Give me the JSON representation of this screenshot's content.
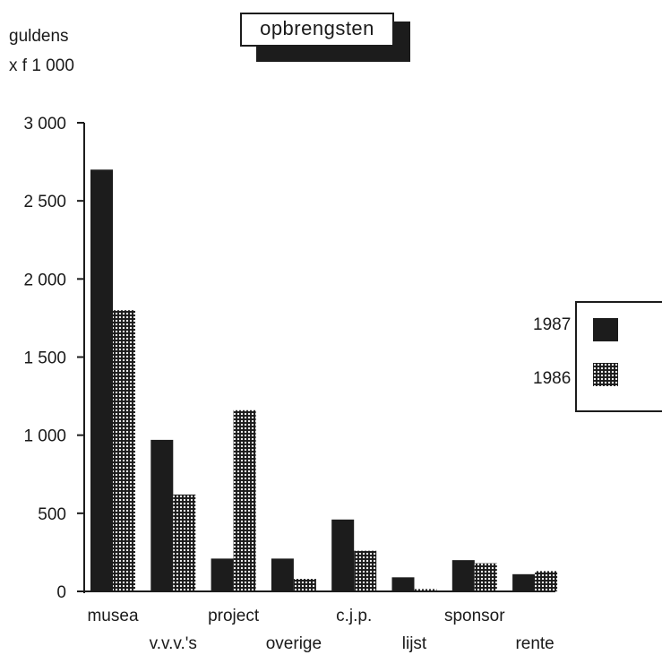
{
  "title": "opbrengsten",
  "unit_line1": "guldens",
  "unit_line2": "x f 1 000",
  "legend": [
    {
      "label": "1987",
      "color": "#1c1c1c",
      "pattern": "solid"
    },
    {
      "label": "1986",
      "color": "#1c1c1c",
      "pattern": "dotted"
    }
  ],
  "chart_data": {
    "type": "bar",
    "title": "opbrengsten",
    "ylabel": "guldens x f 1 000",
    "xlabel": "",
    "ylim": [
      0,
      3000
    ],
    "yticks": [
      {
        "value": 0,
        "label": "0"
      },
      {
        "value": 500,
        "label": "500"
      },
      {
        "value": 1000,
        "label": "1 000"
      },
      {
        "value": 1500,
        "label": "1 500"
      },
      {
        "value": 2000,
        "label": "2 000"
      },
      {
        "value": 2500,
        "label": "2 500"
      },
      {
        "value": 3000,
        "label": "3 000"
      }
    ],
    "categories": [
      "musea",
      "v.v.v.'s",
      "project",
      "overige",
      "c.j.p.",
      "lijst",
      "sponsor",
      "rente"
    ],
    "series": [
      {
        "name": "1987",
        "values": [
          2700,
          970,
          210,
          210,
          460,
          90,
          200,
          110
        ]
      },
      {
        "name": "1986",
        "values": [
          1800,
          620,
          1160,
          80,
          260,
          15,
          180,
          130
        ]
      }
    ],
    "legend_position": "right",
    "grid": false
  }
}
